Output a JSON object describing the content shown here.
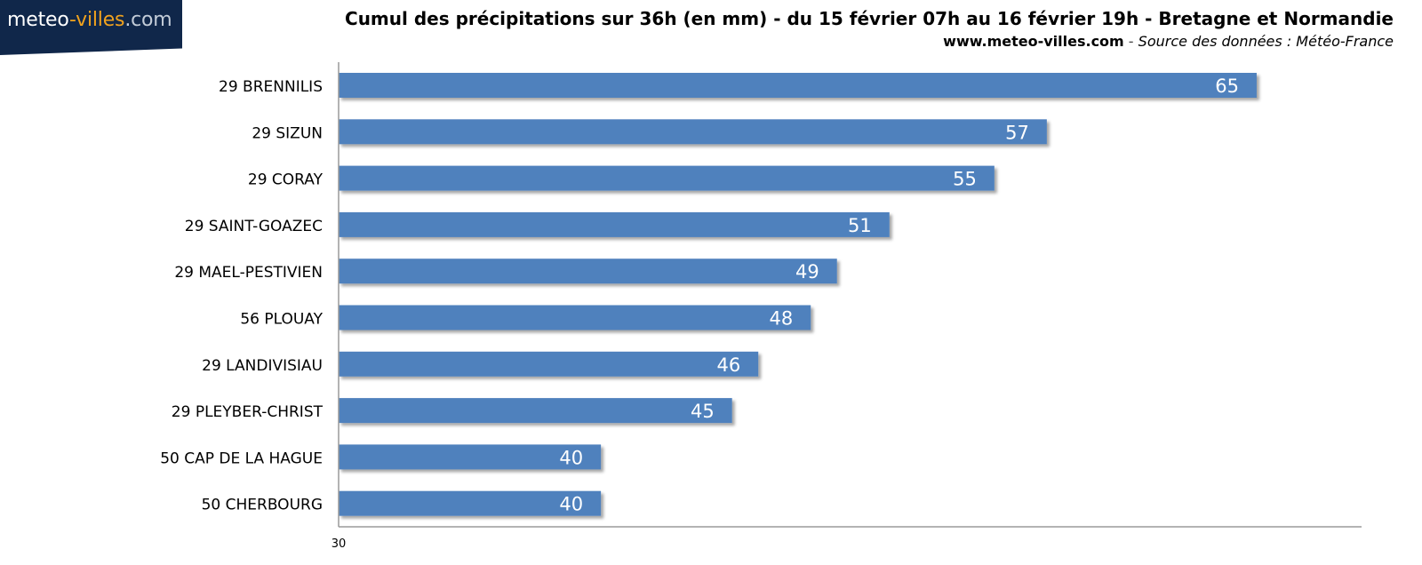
{
  "logo": {
    "part1": "meteo",
    "part2": "-villes",
    "part3": ".com"
  },
  "header": {
    "title": "Cumul des précipitations sur 36h (en mm) - du 15 février 07h au 16 février 19h - Bretagne et Normandie",
    "site": "www.meteo-villes.com",
    "separator": " - ",
    "source": "Source des données : Météo-France"
  },
  "colors": {
    "bar": "#4f81bd",
    "logo_bg": "#10274a",
    "logo_accent": "#f0a21e"
  },
  "chart_data": {
    "type": "bar",
    "orientation": "horizontal",
    "categories": [
      "29 BRENNILIS",
      "29 SIZUN",
      "29 CORAY",
      "29 SAINT-GOAZEC",
      "29 MAEL-PESTIVIEN",
      "56 PLOUAY",
      "29 LANDIVISIAU",
      "29 PLEYBER-CHRIST",
      "50 CAP DE LA HAGUE",
      "50 CHERBOURG"
    ],
    "values": [
      65,
      57,
      55,
      51,
      49,
      48,
      46,
      45,
      40,
      40
    ],
    "xlim": [
      30,
      69
    ],
    "tick_labels": [
      "30"
    ],
    "grid": false,
    "legend": "none",
    "data_labels": true
  }
}
